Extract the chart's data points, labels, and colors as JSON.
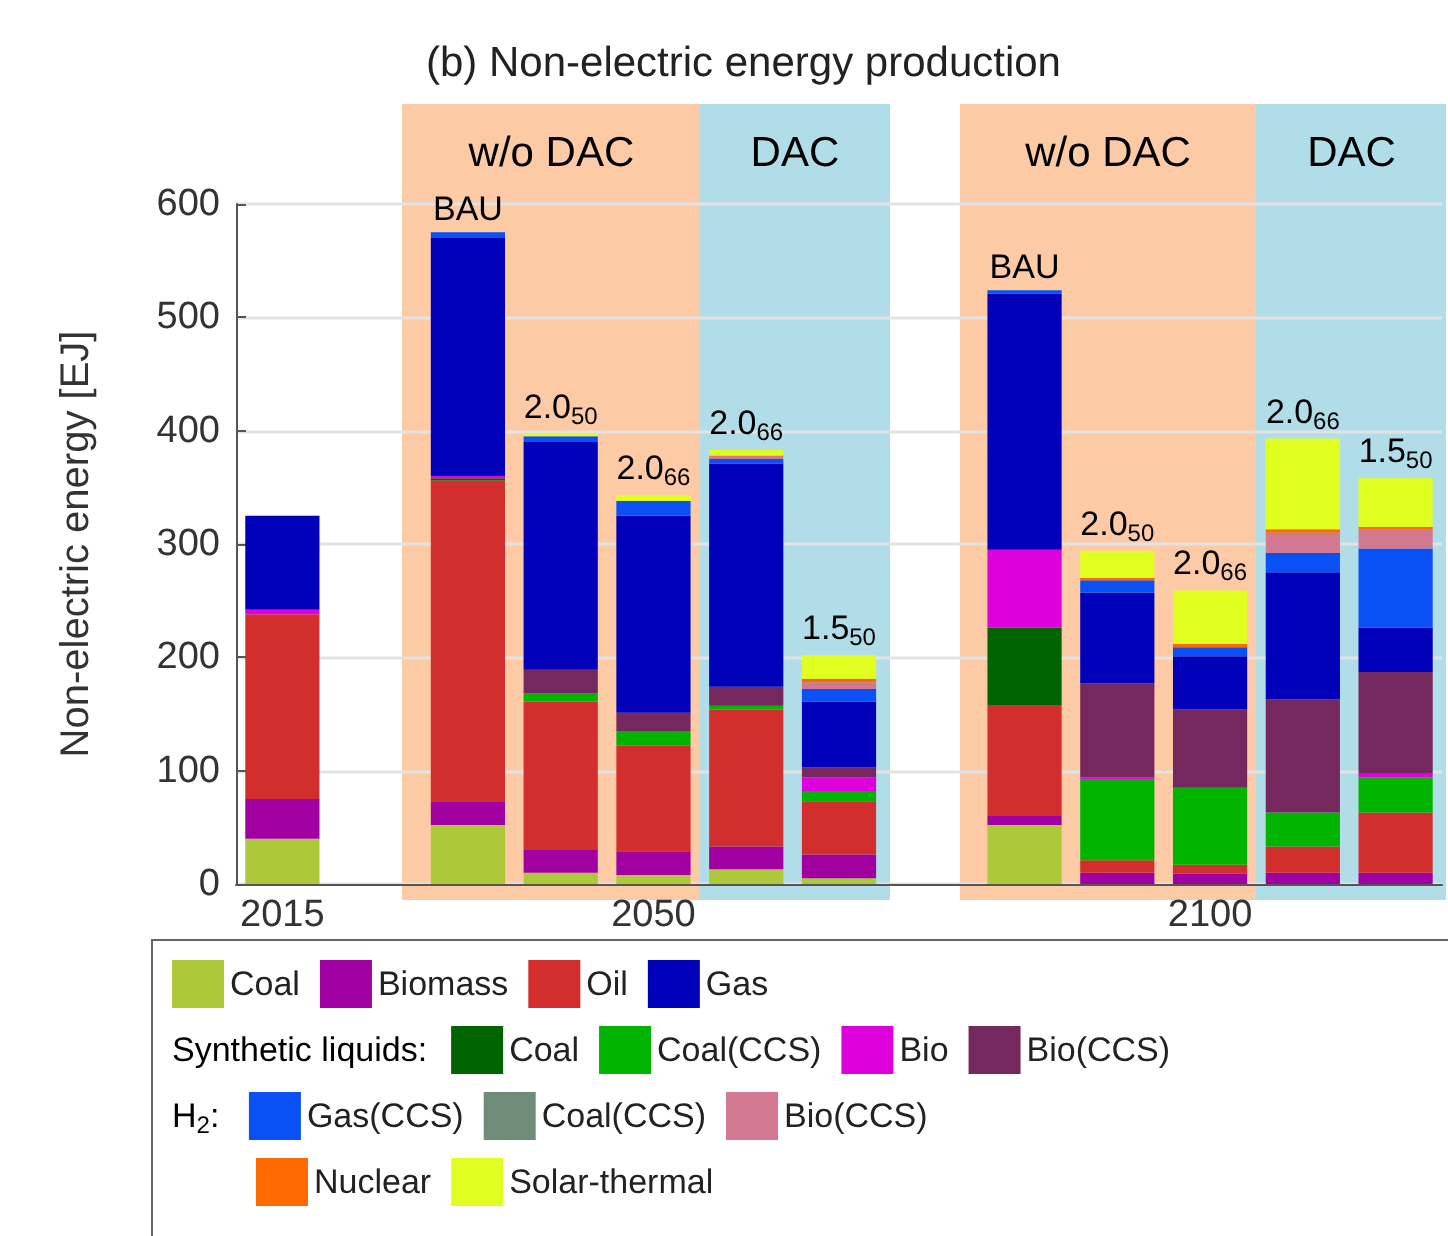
{
  "chart_data": {
    "type": "bar",
    "stacked": true,
    "title": "(b) Non-electric energy production",
    "ylabel": "Non-electric energy [EJ]",
    "categories": [
      "2015",
      null,
      null,
      null,
      "2050",
      null,
      null,
      null,
      null,
      null,
      "2100",
      null,
      null
    ],
    "ylim": [
      0,
      600
    ],
    "yticks": [
      0,
      100,
      200,
      300,
      400,
      500,
      600
    ],
    "grid": "y",
    "legend": "bottom",
    "series": [
      {
        "name": "Coal",
        "color": "#adc83a",
        "values": [
          40,
          null,
          52,
          10,
          8,
          13,
          5,
          null,
          52,
          null,
          null,
          null,
          null
        ]
      },
      {
        "name": "Biomass",
        "color": "#a0009f",
        "values": [
          35,
          null,
          21,
          20,
          21,
          20,
          21,
          null,
          8,
          10,
          9,
          10,
          10
        ]
      },
      {
        "name": "Oil",
        "color": "#d22e2e",
        "values": [
          163,
          null,
          283,
          131,
          93,
          121,
          47,
          null,
          98,
          11,
          8,
          23,
          53
        ]
      },
      {
        "name": "Coal",
        "color": "#006400",
        "values": [
          null,
          null,
          2,
          null,
          null,
          null,
          null,
          null,
          68,
          null,
          null,
          null,
          null
        ]
      },
      {
        "name": "Coal(CCS)",
        "color": "#00b400",
        "values": [
          null,
          null,
          null,
          7,
          13,
          3,
          9,
          null,
          null,
          71,
          68,
          30,
          31
        ]
      },
      {
        "name": "Bio",
        "color": "#dd00dd",
        "values": [
          4,
          null,
          2,
          null,
          null,
          1,
          12,
          null,
          69,
          2,
          null,
          null,
          4
        ]
      },
      {
        "name": "Bio(CCS)",
        "color": "#75285e",
        "values": [
          null,
          null,
          null,
          21,
          16,
          16,
          9,
          null,
          null,
          83,
          69,
          100,
          89
        ]
      },
      {
        "name": "Gas",
        "color": "#0000b8",
        "values": [
          83,
          null,
          210,
          201,
          174,
          197,
          58,
          null,
          226,
          80,
          47,
          112,
          39
        ]
      },
      {
        "name": "Gas(CCS)",
        "color": "#0a50f5",
        "values": [
          null,
          null,
          5,
          5,
          13,
          4,
          11,
          null,
          3,
          11,
          8,
          17,
          70
        ]
      },
      {
        "name": "Coal(CCS)",
        "color": "#6e8c78",
        "values": [
          null,
          null,
          null,
          null,
          null,
          null,
          null,
          null,
          null,
          null,
          null,
          null,
          null
        ]
      },
      {
        "name": "Bio(CCS)",
        "color": "#d27890",
        "values": [
          null,
          null,
          null,
          null,
          null,
          3,
          6,
          null,
          null,
          null,
          null,
          18,
          17
        ]
      },
      {
        "name": "Nuclear",
        "color": "#ff6a00",
        "values": [
          null,
          null,
          null,
          null,
          null,
          null,
          3,
          null,
          null,
          2,
          3,
          3,
          2
        ]
      },
      {
        "name": "Solar-thermal",
        "color": "#e0ff20",
        "values": [
          null,
          null,
          null,
          2,
          5,
          5,
          21,
          null,
          null,
          24,
          47,
          80,
          43
        ]
      }
    ],
    "annotations": [
      "w/o DAC",
      "DAC",
      "w/o DAC",
      "DAC",
      {
        "text": "BAU",
        "y": 575
      },
      {
        "text": "2.0$_{50}$",
        "y": 397
      },
      {
        "text": "2.0$_{66}$",
        "y": 343
      },
      {
        "text": "2.0$_{66}$",
        "y": 383
      },
      {
        "text": "1.5$_{50}$",
        "y": 202
      },
      {
        "text": "BAU",
        "y": 524
      },
      {
        "text": "2.0$_{50}$",
        "y": 294
      },
      {
        "text": "2.0$_{66}$",
        "y": 259
      },
      {
        "text": "2.0$_{66}$",
        "y": 393
      },
      {
        "text": "1.5$_{50}$",
        "y": 358
      },
      "Synthetic liquids:",
      "H$_{2}$:"
    ]
  }
}
